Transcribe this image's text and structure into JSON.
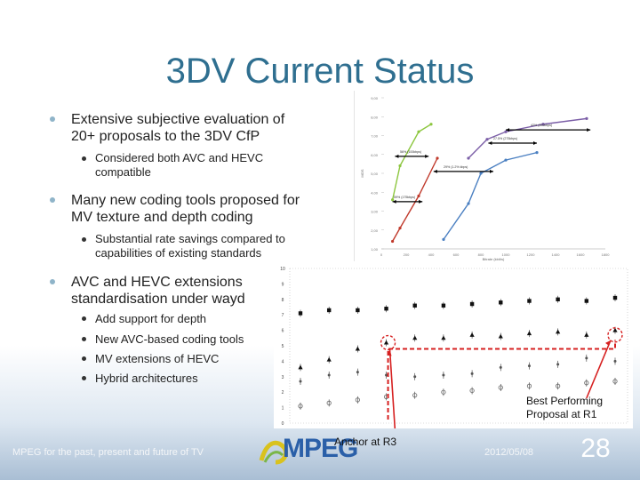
{
  "slide": {
    "title": "3DV Current Status",
    "bullets": [
      {
        "text": "Extensive subjective evaluation of 20+ proposals to the 3DV CfP",
        "sub": [
          "Considered both AVC and HEVC compatible"
        ]
      },
      {
        "text": "Many new coding tools proposed for MV texture and depth coding",
        "sub": [
          "Substantial rate savings compared to capabilities of existing standards"
        ]
      },
      {
        "text": "AVC and  HEVC extensions standardisation under wayd",
        "sub": [
          "Add support for depth",
          "New AVC-based coding tools",
          "MV extensions of HEVC",
          "Hybrid architectures"
        ]
      }
    ],
    "callout": "Best Performing Proposal at R1",
    "anchor_label": "Anchor at R3",
    "footer": {
      "left_text": "MPEG for the past, present and future of TV",
      "logo_text": "MPEG",
      "date": "2012/05/08",
      "page_number": "28"
    }
  },
  "colors": {
    "title": "#2f6f90",
    "bullet_level1": "#8fb4c9",
    "series_green": "#8cc63e",
    "series_red": "#c0392b",
    "series_blue": "#4a7fc1",
    "series_purple": "#7b5ea7",
    "dashed_red": "#d62020"
  },
  "chart_data": [
    {
      "type": "line",
      "title": "",
      "xlabel": "Bitrate (kbit/s)",
      "ylabel": "MOS",
      "xlim": [
        0,
        1800
      ],
      "ylim": [
        1,
        9
      ],
      "xticks": [
        "0",
        "200",
        "400",
        "600",
        "800",
        "1000",
        "1200",
        "1400",
        "1600",
        "1800"
      ],
      "yticks": [
        "1,00",
        "2,00",
        "3,00",
        "4,00",
        "5,00",
        "6,00",
        "7,00",
        "8,00",
        "9,00"
      ],
      "series": [
        {
          "color": "green",
          "x": [
            90,
            150,
            300,
            400
          ],
          "y": [
            3.6,
            5.4,
            7.2,
            7.6
          ]
        },
        {
          "color": "red",
          "x": [
            90,
            150,
            300,
            450
          ],
          "y": [
            1.4,
            2.1,
            3.8,
            5.8
          ]
        },
        {
          "color": "blue",
          "x": [
            500,
            700,
            800,
            1000,
            1250
          ],
          "y": [
            1.5,
            3.4,
            5.0,
            5.7,
            6.1
          ]
        },
        {
          "color": "purple",
          "x": [
            700,
            850,
            1000,
            1300,
            1650
          ],
          "y": [
            5.8,
            6.8,
            7.2,
            7.6,
            7.9
          ]
        }
      ],
      "annotations": [
        "56% (100kbps)",
        "59% (175kbps)",
        "29% (1.2% kbps)",
        "27.5% (275kbps)",
        "42% (350kbps)"
      ]
    },
    {
      "type": "scatter",
      "title": "",
      "xlabel": "",
      "ylabel": "",
      "ylim": [
        0,
        10
      ],
      "yticks": [
        "0",
        "1",
        "2",
        "3",
        "4",
        "5",
        "6",
        "7",
        "8",
        "9",
        "10"
      ],
      "series": [
        {
          "marker": "square",
          "x": [
            1,
            2,
            3,
            4,
            5,
            6,
            7,
            8,
            9,
            10,
            11,
            12
          ],
          "y": [
            7.1,
            7.3,
            7.3,
            7.4,
            7.6,
            7.6,
            7.7,
            7.8,
            7.9,
            8.0,
            7.9,
            8.1
          ]
        },
        {
          "marker": "triangle",
          "x": [
            1,
            2,
            3,
            4,
            5,
            6,
            7,
            8,
            9,
            10,
            11,
            12
          ],
          "y": [
            3.6,
            4.1,
            4.8,
            5.2,
            5.5,
            5.5,
            5.7,
            5.6,
            5.8,
            5.9,
            5.7,
            6.0
          ]
        },
        {
          "marker": "dot",
          "x": [
            1,
            2,
            3,
            4,
            5,
            6,
            7,
            8,
            9,
            10,
            11,
            12
          ],
          "y": [
            2.7,
            3.1,
            3.3,
            3.1,
            3.0,
            3.1,
            3.2,
            3.6,
            3.7,
            3.8,
            4.2,
            4.0
          ]
        },
        {
          "marker": "circle",
          "x": [
            1,
            2,
            3,
            4,
            5,
            6,
            7,
            8,
            9,
            10,
            11,
            12
          ],
          "y": [
            1.1,
            1.3,
            1.5,
            1.7,
            1.8,
            2.0,
            2.1,
            2.3,
            2.4,
            2.4,
            2.6,
            2.7
          ]
        }
      ],
      "anchor_level": 4.8
    }
  ]
}
